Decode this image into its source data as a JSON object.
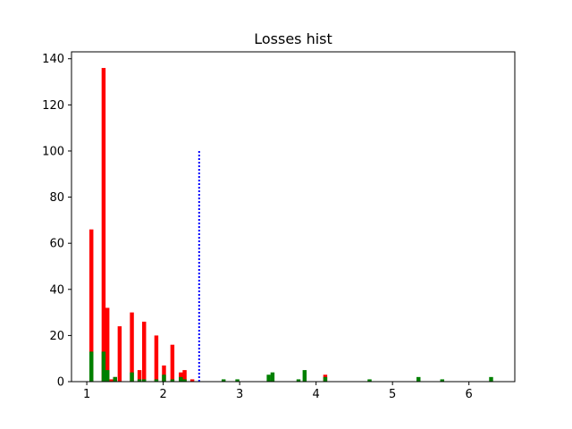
{
  "chart_data": {
    "type": "bar",
    "title": "Losses hist",
    "xlabel": "",
    "ylabel": "",
    "xlim": [
      0.8,
      6.6
    ],
    "ylim": [
      0,
      143
    ],
    "xticks": [
      1,
      2,
      3,
      4,
      5,
      6
    ],
    "yticks": [
      0,
      20,
      40,
      60,
      80,
      100,
      120,
      140
    ],
    "grid": false,
    "legend": "none",
    "bar_width": 0.052,
    "series": [
      {
        "color": "#ff0000",
        "x": [
          1.06,
          1.22,
          1.27,
          1.32,
          1.37,
          1.43,
          1.59,
          1.69,
          1.75,
          1.91,
          2.01,
          2.12,
          2.23,
          2.28,
          2.38,
          4.12
        ],
        "values": [
          66,
          136,
          32,
          1,
          2,
          24,
          30,
          5,
          26,
          20,
          7,
          16,
          4,
          5,
          1,
          3
        ]
      },
      {
        "color": "#008000",
        "x": [
          1.06,
          1.22,
          1.27,
          1.37,
          1.59,
          1.69,
          1.75,
          1.91,
          2.01,
          2.12,
          2.23,
          2.28,
          2.79,
          2.97,
          3.38,
          3.43,
          3.77,
          3.85,
          4.12,
          4.7,
          5.34,
          5.65,
          6.29
        ],
        "values": [
          13,
          13,
          5,
          2,
          4,
          1,
          1,
          1,
          3,
          1,
          2,
          1,
          1,
          1,
          3,
          4,
          1,
          5,
          2,
          1,
          2,
          1,
          2
        ]
      }
    ],
    "vline": {
      "x": 2.47,
      "ymin": 0,
      "ymax": 100,
      "color": "#0000ff",
      "style": "dotted"
    }
  }
}
